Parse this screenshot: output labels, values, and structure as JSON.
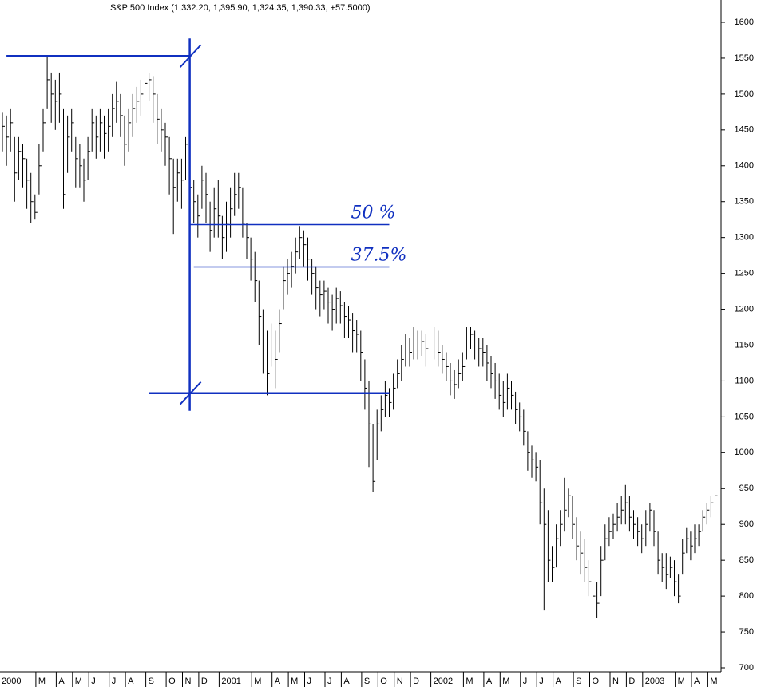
{
  "chart_data": {
    "type": "ohlc",
    "title": "S&P 500 Index (1,332.20, 1,395.90, 1,324.35, 1,390.33, +57.5000)",
    "color": "#000000",
    "annotation_color": "#1030c0",
    "ylim": [
      700,
      1600
    ],
    "yticks": [
      700,
      750,
      800,
      850,
      900,
      950,
      1000,
      1050,
      1100,
      1150,
      1200,
      1250,
      1300,
      1350,
      1400,
      1450,
      1500,
      1550,
      1600
    ],
    "xlim": [
      0,
      176
    ],
    "xticks": [
      {
        "value": 0,
        "label": "2000"
      },
      {
        "value": 9,
        "label": "M"
      },
      {
        "value": 14,
        "label": "A"
      },
      {
        "value": 18,
        "label": "M"
      },
      {
        "value": 22,
        "label": "J"
      },
      {
        "value": 27,
        "label": "J"
      },
      {
        "value": 31,
        "label": "A"
      },
      {
        "value": 36,
        "label": "S"
      },
      {
        "value": 41,
        "label": "O"
      },
      {
        "value": 45,
        "label": "N"
      },
      {
        "value": 49,
        "label": "D"
      },
      {
        "value": 54,
        "label": "2001"
      },
      {
        "value": 62,
        "label": "M"
      },
      {
        "value": 67,
        "label": "A"
      },
      {
        "value": 71,
        "label": "M"
      },
      {
        "value": 75,
        "label": "J"
      },
      {
        "value": 80,
        "label": "J"
      },
      {
        "value": 84,
        "label": "A"
      },
      {
        "value": 89,
        "label": "S"
      },
      {
        "value": 93,
        "label": "O"
      },
      {
        "value": 97,
        "label": "N"
      },
      {
        "value": 101,
        "label": "D"
      },
      {
        "value": 106,
        "label": "2002"
      },
      {
        "value": 114,
        "label": "M"
      },
      {
        "value": 119,
        "label": "A"
      },
      {
        "value": 123,
        "label": "M"
      },
      {
        "value": 128,
        "label": "J"
      },
      {
        "value": 132,
        "label": "J"
      },
      {
        "value": 136,
        "label": "A"
      },
      {
        "value": 141,
        "label": "S"
      },
      {
        "value": 145,
        "label": "O"
      },
      {
        "value": 150,
        "label": "N"
      },
      {
        "value": 154,
        "label": "D"
      },
      {
        "value": 158,
        "label": "2003"
      },
      {
        "value": 166,
        "label": "M"
      },
      {
        "value": 170,
        "label": "A"
      },
      {
        "value": 174,
        "label": "M"
      }
    ],
    "high": [
      1475,
      1470,
      1480,
      1440,
      1440,
      1430,
      1410,
      1390,
      1360,
      1430,
      1480,
      1553,
      1530,
      1520,
      1530,
      1480,
      1470,
      1480,
      1440,
      1430,
      1410,
      1440,
      1480,
      1470,
      1480,
      1470,
      1480,
      1500,
      1517,
      1500,
      1470,
      1480,
      1500,
      1510,
      1520,
      1530,
      1530,
      1525,
      1500,
      1480,
      1460,
      1440,
      1410,
      1410,
      1410,
      1440,
      1420,
      1380,
      1360,
      1400,
      1390,
      1350,
      1370,
      1380,
      1330,
      1350,
      1370,
      1390,
      1390,
      1370,
      1320,
      1300,
      1280,
      1240,
      1200,
      1170,
      1180,
      1170,
      1200,
      1260,
      1270,
      1280,
      1300,
      1316,
      1310,
      1300,
      1270,
      1260,
      1240,
      1240,
      1230,
      1220,
      1230,
      1225,
      1210,
      1205,
      1195,
      1185,
      1170,
      1130,
      1100,
      1040,
      1060,
      1080,
      1100,
      1090,
      1110,
      1130,
      1150,
      1165,
      1160,
      1175,
      1170,
      1170,
      1165,
      1170,
      1175,
      1170,
      1150,
      1140,
      1125,
      1115,
      1130,
      1140,
      1175,
      1175,
      1170,
      1160,
      1160,
      1150,
      1135,
      1125,
      1110,
      1100,
      1110,
      1100,
      1085,
      1070,
      1060,
      1030,
      1010,
      1000,
      990,
      950,
      920,
      870,
      900,
      920,
      965,
      950,
      940,
      910,
      890,
      880,
      850,
      830,
      820,
      870,
      900,
      910,
      915,
      930,
      940,
      955,
      940,
      920,
      910,
      900,
      920,
      930,
      920,
      890,
      860,
      860,
      855,
      850,
      830,
      880,
      895,
      890,
      900,
      900,
      920,
      930,
      940,
      950
    ],
    "low": [
      1420,
      1400,
      1420,
      1350,
      1380,
      1370,
      1340,
      1320,
      1325,
      1360,
      1420,
      1480,
      1460,
      1450,
      1460,
      1340,
      1390,
      1420,
      1370,
      1370,
      1350,
      1380,
      1420,
      1410,
      1420,
      1410,
      1420,
      1440,
      1460,
      1440,
      1400,
      1420,
      1440,
      1460,
      1470,
      1480,
      1490,
      1460,
      1430,
      1420,
      1400,
      1360,
      1305,
      1350,
      1340,
      1380,
      1340,
      1320,
      1300,
      1340,
      1320,
      1280,
      1300,
      1300,
      1270,
      1280,
      1300,
      1330,
      1340,
      1300,
      1270,
      1240,
      1210,
      1150,
      1110,
      1080,
      1120,
      1090,
      1140,
      1200,
      1220,
      1230,
      1250,
      1270,
      1260,
      1240,
      1220,
      1200,
      1190,
      1200,
      1180,
      1170,
      1180,
      1180,
      1160,
      1160,
      1140,
      1140,
      1100,
      1060,
      980,
      945,
      990,
      1030,
      1050,
      1050,
      1060,
      1090,
      1100,
      1120,
      1120,
      1130,
      1130,
      1135,
      1120,
      1130,
      1130,
      1120,
      1110,
      1100,
      1080,
      1075,
      1090,
      1100,
      1130,
      1145,
      1130,
      1120,
      1120,
      1100,
      1090,
      1075,
      1060,
      1050,
      1060,
      1060,
      1040,
      1030,
      1010,
      975,
      965,
      960,
      900,
      780,
      820,
      820,
      840,
      870,
      890,
      910,
      880,
      850,
      830,
      820,
      800,
      780,
      770,
      800,
      850,
      870,
      880,
      890,
      900,
      900,
      890,
      880,
      870,
      860,
      870,
      890,
      870,
      830,
      820,
      810,
      825,
      800,
      790,
      830,
      860,
      850,
      860,
      870,
      890,
      900,
      910,
      920
    ],
    "close": [
      1455,
      1440,
      1460,
      1390,
      1420,
      1410,
      1380,
      1350,
      1335,
      1400,
      1460,
      1520,
      1500,
      1490,
      1500,
      1360,
      1440,
      1460,
      1410,
      1400,
      1380,
      1420,
      1460,
      1440,
      1460,
      1445,
      1455,
      1480,
      1490,
      1470,
      1430,
      1460,
      1480,
      1490,
      1500,
      1515,
      1520,
      1500,
      1465,
      1450,
      1440,
      1410,
      1370,
      1390,
      1380,
      1430,
      1370,
      1350,
      1330,
      1380,
      1360,
      1310,
      1340,
      1330,
      1300,
      1320,
      1340,
      1360,
      1370,
      1320,
      1300,
      1270,
      1240,
      1190,
      1150,
      1110,
      1160,
      1130,
      1180,
      1240,
      1250,
      1260,
      1280,
      1300,
      1290,
      1270,
      1250,
      1230,
      1220,
      1225,
      1210,
      1200,
      1215,
      1205,
      1190,
      1185,
      1170,
      1165,
      1140,
      1090,
      1040,
      960,
      1040,
      1060,
      1080,
      1070,
      1090,
      1110,
      1130,
      1150,
      1140,
      1160,
      1150,
      1155,
      1145,
      1150,
      1160,
      1140,
      1130,
      1120,
      1100,
      1095,
      1110,
      1120,
      1160,
      1165,
      1150,
      1145,
      1140,
      1125,
      1110,
      1100,
      1080,
      1070,
      1090,
      1080,
      1060,
      1050,
      1030,
      1000,
      990,
      980,
      930,
      900,
      850,
      840,
      880,
      900,
      920,
      940,
      900,
      870,
      860,
      840,
      820,
      800,
      790,
      850,
      880,
      890,
      900,
      910,
      920,
      930,
      910,
      900,
      890,
      880,
      900,
      920,
      890,
      850,
      840,
      830,
      840,
      820,
      800,
      860,
      880,
      870,
      880,
      890,
      910,
      920,
      930,
      940
    ],
    "range_lines": [
      {
        "value": 1553,
        "from": 1,
        "to": 46
      },
      {
        "value": 1083,
        "from": 36,
        "to": 95
      }
    ],
    "range_marker": {
      "at": 46,
      "from": 1083,
      "to": 1553
    },
    "retracements": [
      {
        "label": "50 %",
        "value": 1318,
        "from": 46,
        "to": 95
      },
      {
        "label": "37.5%",
        "value": 1259,
        "from": 47,
        "to": 95
      }
    ]
  }
}
